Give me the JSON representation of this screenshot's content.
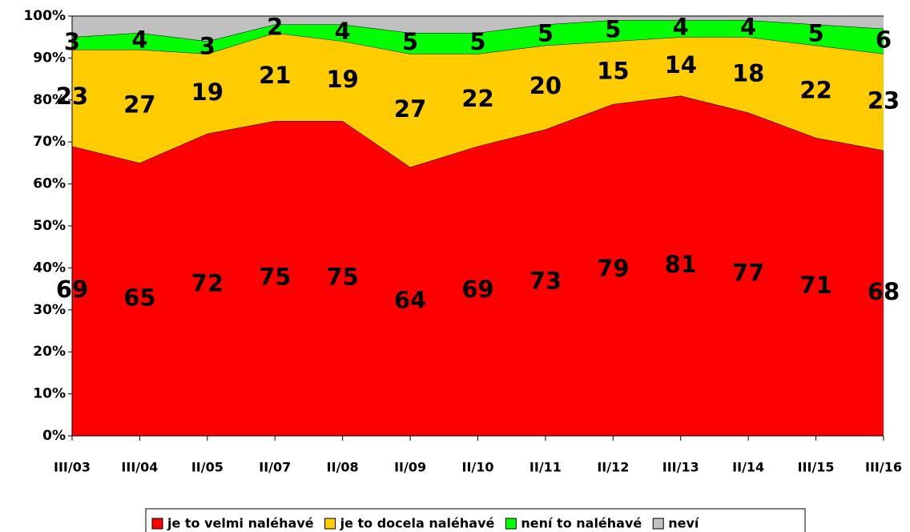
{
  "chart_data": {
    "type": "stacked_area",
    "categories": [
      "III/03",
      "III/04",
      "II/05",
      "II/07",
      "II/08",
      "II/09",
      "II/10",
      "II/11",
      "II/12",
      "III/13",
      "II/14",
      "III/15",
      "III/16"
    ],
    "series": [
      {
        "name": "je to velmi naléhavé",
        "color": "#ff0000",
        "values": [
          69,
          65,
          72,
          75,
          75,
          64,
          69,
          73,
          79,
          81,
          77,
          71,
          68
        ],
        "labels": true
      },
      {
        "name": "je to docela naléhavé",
        "color": "#ffcc00",
        "values": [
          23,
          27,
          19,
          21,
          19,
          27,
          22,
          20,
          15,
          14,
          18,
          22,
          23
        ],
        "labels": true
      },
      {
        "name": "není to naléhavé",
        "color": "#00ff00",
        "values": [
          3,
          4,
          3,
          2,
          4,
          5,
          5,
          5,
          5,
          4,
          4,
          5,
          6
        ],
        "labels": true
      },
      {
        "name": "neví",
        "color": "#c0c0c0",
        "values": [
          5,
          4,
          6,
          2,
          2,
          4,
          4,
          2,
          1,
          1,
          1,
          2,
          3
        ],
        "labels": false
      }
    ],
    "ylim": [
      0,
      100
    ],
    "yticks": [
      {
        "value": 0,
        "label": "0%"
      },
      {
        "value": 10,
        "label": "10%"
      },
      {
        "value": 20,
        "label": "20%"
      },
      {
        "value": 30,
        "label": "30%"
      },
      {
        "value": 40,
        "label": "40%"
      },
      {
        "value": 50,
        "label": "50%"
      },
      {
        "value": 60,
        "label": "60%"
      },
      {
        "value": 70,
        "label": "70%"
      },
      {
        "value": 80,
        "label": "80%"
      },
      {
        "value": 90,
        "label": "90%"
      },
      {
        "value": 100,
        "label": "100%"
      }
    ],
    "legend": "bottom"
  }
}
